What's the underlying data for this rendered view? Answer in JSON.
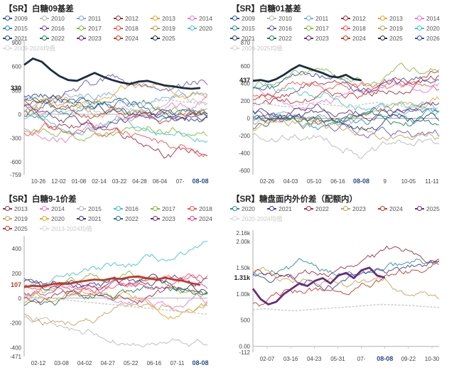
{
  "chart_data": [
    {
      "id": "p1",
      "type": "line",
      "title": "【SR】白糖09基差",
      "legend": [
        "2009",
        "2010",
        "2011",
        "2012",
        "2013",
        "2014",
        "2015",
        "2016",
        "2017",
        "2018",
        "2019",
        "2020",
        "2021",
        "2022",
        "2023",
        "2024",
        "2025",
        "2009-2024均值"
      ],
      "legend_colors": [
        "#2f55a4",
        "#b8b8b8",
        "#7fa7d8",
        "#9b2f3f",
        "#e3a52a",
        "#e87bd0",
        "#2e8ea0",
        "#6e54a8",
        "#7fbd3b",
        "#ff4d4d",
        "#c2a35a",
        "#44c4c4",
        "#2c3e7a",
        "#1f7a5a",
        "#6b2c7a",
        "#c0392b",
        "#1c2e40",
        "#d8d8d8"
      ],
      "emphasis_series": 16,
      "ylim": [
        -759,
        900
      ],
      "yticks": [
        -759,
        -600,
        -300,
        0,
        300,
        600,
        900
      ],
      "xticks": [
        "10-26",
        "12-02",
        "01-08",
        "02-14",
        "03-22",
        "04-28",
        "06-04",
        "07-",
        "08-08"
      ],
      "highlight_xtick": "08-08",
      "value_label": "330",
      "value_label_color": "dark",
      "value_label_y": 330,
      "highlight": {
        "name": "2025",
        "values": [
          620,
          700,
          660,
          560,
          480,
          430,
          420,
          470,
          520,
          470,
          430,
          400,
          380,
          410,
          420,
          390,
          360,
          350,
          330,
          320,
          330
        ]
      },
      "mean": {
        "name": "2009-2024均值",
        "values": [
          200,
          220,
          210,
          180,
          150,
          140,
          130,
          130,
          150,
          160,
          150,
          140,
          140,
          150,
          160,
          170,
          180,
          160,
          150,
          140,
          150
        ]
      }
    },
    {
      "id": "p2",
      "type": "line",
      "title": "【SR】白糖01基差",
      "legend": [
        "2009",
        "2010",
        "2011",
        "2012",
        "2013",
        "2014",
        "2015",
        "2016",
        "2017",
        "2018",
        "2019",
        "2020",
        "2021",
        "2022",
        "2023",
        "2024",
        "2025",
        "2026",
        "2009-2025均值"
      ],
      "legend_colors": [
        "#2f55a4",
        "#b8b8b8",
        "#7fa7d8",
        "#9b2f3f",
        "#e3a52a",
        "#e87bd0",
        "#2e8ea0",
        "#6e54a8",
        "#7fbd3b",
        "#ff4d4d",
        "#c2a35a",
        "#44c4c4",
        "#2c3e7a",
        "#1f7a5a",
        "#6b2c7a",
        "#c0392b",
        "#1c2e40",
        "#3b4c9a",
        "#d8d8d8"
      ],
      "emphasis_series": 16,
      "ylim": [
        -650,
        870
      ],
      "yticks": [
        -600,
        -400,
        -200,
        0,
        200,
        400,
        600,
        870
      ],
      "xticks": [
        "02-26",
        "04-03",
        "05-10",
        "06-16",
        "08-08",
        "9",
        "10-05",
        "11-11"
      ],
      "highlight_xtick": "08-08",
      "value_label": "437",
      "value_label_color": "dark",
      "value_label_y": 437,
      "highlight": {
        "name": "2025",
        "values": [
          430,
          440,
          420,
          450,
          500,
          560,
          610,
          580,
          550,
          520,
          480,
          470,
          500,
          450,
          437
        ]
      },
      "mean": {
        "name": "2009-2025均值",
        "values": [
          150,
          170,
          160,
          140,
          130,
          150,
          170,
          180,
          160,
          150,
          140,
          130,
          150,
          170,
          180,
          160,
          150,
          140,
          130,
          120,
          110,
          120
        ]
      }
    },
    {
      "id": "p3",
      "type": "line",
      "title": "【SR】白糖9-1价差",
      "legend": [
        "2013",
        "2014",
        "2015",
        "2016",
        "2017",
        "2018",
        "2019",
        "2020",
        "2021",
        "2022",
        "2023",
        "2024",
        "2025",
        "2013-2024均值"
      ],
      "legend_colors": [
        "#9b2f3f",
        "#e87bd0",
        "#b8b8b8",
        "#44c4c4",
        "#7fbd3b",
        "#ff4d4d",
        "#c2a35a",
        "#e3a52a",
        "#2c3e7a",
        "#1f7a5a",
        "#6b2c7a",
        "#e3428f",
        "#c0392b",
        "#d8d8d8"
      ],
      "emphasis_series": 12,
      "ylim": [
        -471,
        480
      ],
      "yticks": [
        -471,
        -400,
        -200,
        0,
        200,
        400
      ],
      "xticks": [
        "02-12",
        "03-08",
        "04-02",
        "04-27",
        "05-22",
        "06-16",
        "07-11",
        "08-08"
      ],
      "highlight_xtick": "08-08",
      "value_label": "107",
      "value_label_color": "red",
      "value_label_y": 107,
      "highlight": {
        "name": "2025",
        "values": [
          90,
          100,
          95,
          110,
          120,
          115,
          130,
          140,
          150,
          145,
          160,
          155,
          170,
          175,
          160,
          150,
          165,
          150,
          140,
          120,
          107
        ]
      },
      "mean": {
        "name": "2013-2024均值",
        "values": [
          20,
          10,
          0,
          -10,
          -20,
          -30,
          -40,
          -50,
          -60,
          -70,
          -80,
          -90,
          -100,
          -110,
          -120,
          -130
        ]
      }
    },
    {
      "id": "p4",
      "type": "line",
      "title": "【SR】糖盘面内外价差（配额内）",
      "legend": [
        "2020",
        "2021",
        "2022",
        "2023",
        "2024",
        "2025",
        "2020-2024均值"
      ],
      "legend_colors": [
        "#2e8ea0",
        "#3b3f98",
        "#9b2f3f",
        "#c2a35a",
        "#c0392b",
        "#6b2c7a",
        "#d8d8d8"
      ],
      "emphasis_series": 5,
      "ylim": [
        -112,
        2160
      ],
      "yticks": [
        -112,
        0,
        500,
        1000,
        1500,
        2000,
        2160
      ],
      "ytick_labels": [
        "-112",
        "0.00",
        "500",
        "1.00k",
        "1.50k",
        "2.00k",
        "2.16k"
      ],
      "xticks": [
        "02-07",
        "03-16",
        "04-23",
        "05-31",
        "07-",
        "08-08",
        "09-22",
        "10-30"
      ],
      "highlight_xtick": "08-08",
      "value_label": "1.31k",
      "value_label_color": "dark",
      "value_label_y": 1310,
      "highlight": {
        "name": "2025",
        "values": [
          1100,
          900,
          800,
          850,
          1000,
          1100,
          1200,
          1150,
          1250,
          1300,
          1200,
          1350,
          1400,
          1300,
          1450,
          1500,
          1350,
          1310
        ]
      },
      "mean": {
        "name": "2020-2024均值",
        "values": [
          700,
          720,
          690,
          680,
          700,
          720,
          740,
          760,
          780,
          800,
          790,
          780,
          760,
          740
        ]
      }
    }
  ]
}
